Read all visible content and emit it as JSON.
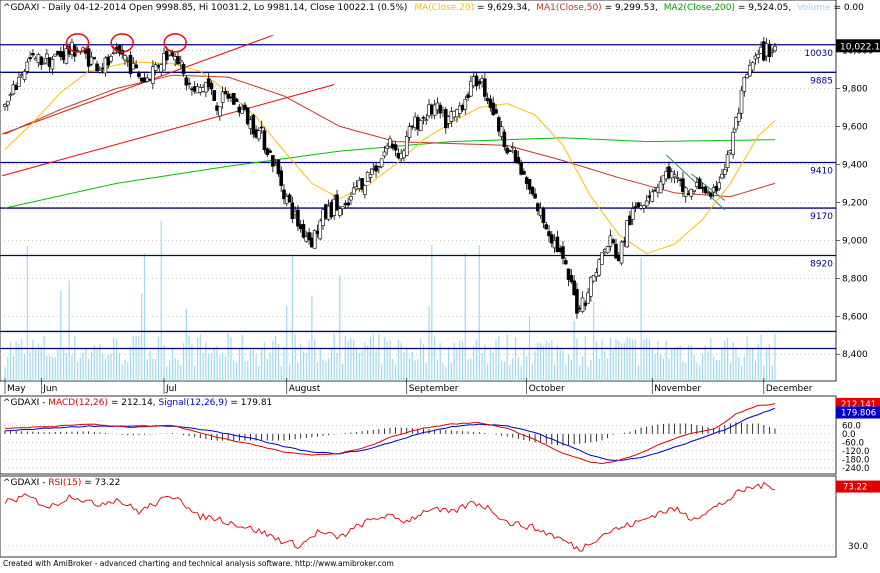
{
  "chart_data": [
    {
      "type": "candlestick",
      "panel": "price",
      "symbol": "^GDAXI",
      "header": {
        "prefix": "^GDAXI - Daily 04-12-2014 Open 9998.85, Hi 10031.2, Lo 9981.14, Close 10022.1 (0.5%)",
        "ma_label": "MA(Close,20)",
        "ma_value": " = 9,629.34,",
        "ma1_label": "MA1(Close,50)",
        "ma1_value": " = 9,299.53,",
        "ma2_label": "MA2(Close,200)",
        "ma2_value": " = 9,524.05,",
        "vol_label": "Volume",
        "vol_value": " = 0.00"
      },
      "last_price_label": "10,022.1",
      "ylim": [
        8280,
        10150
      ],
      "y_ticks": [
        8400,
        8600,
        8800,
        9000,
        9200,
        9400,
        9600,
        9800,
        10000
      ],
      "y_tick_labels": [
        "8,400",
        "8,600",
        "8,800",
        "9,000",
        "9,200",
        "9,400",
        "9,600",
        "9,800",
        "10,000"
      ],
      "x_month_labels": [
        {
          "label": "May",
          "index": 0
        },
        {
          "label": "Jun",
          "index": 13
        },
        {
          "label": "Jul",
          "index": 57
        },
        {
          "label": "August",
          "index": 101
        },
        {
          "label": "September",
          "index": 144
        },
        {
          "label": "October",
          "index": 187
        },
        {
          "label": "November",
          "index": 232
        },
        {
          "label": "December",
          "index": 272
        }
      ],
      "horizontal_lines": [
        {
          "value": 10030,
          "label": "10030",
          "color": "#00008b"
        },
        {
          "value": 9885,
          "label": "9885",
          "color": "#00008b"
        },
        {
          "value": 9410,
          "label": "9410",
          "color": "#00008b"
        },
        {
          "value": 9170,
          "label": "9170",
          "color": "#00008b"
        },
        {
          "value": 8920,
          "label": "8920",
          "color": "#00008b"
        },
        {
          "value": 8520,
          "label": "",
          "color": "#00008b"
        },
        {
          "value": 8430,
          "label": "",
          "color": "#00008b"
        }
      ],
      "trendlines": [
        {
          "x1": -1,
          "y1": 9560,
          "x2": 96,
          "y2": 10080,
          "color": "#ff0000"
        },
        {
          "x1": -1,
          "y1": 9340,
          "x2": 118,
          "y2": 9820,
          "color": "#ff0000"
        },
        {
          "x1": 237,
          "y1": 9450,
          "x2": 258,
          "y2": 9160,
          "color": "#2e8b57"
        },
        {
          "x1": 246,
          "y1": 9350,
          "x2": 258,
          "y2": 9210,
          "color": "#2e8b57"
        }
      ],
      "circles": [
        {
          "index": 26,
          "value": 10040,
          "color": "#ff0000"
        },
        {
          "index": 42,
          "value": 10040,
          "color": "#ff0000"
        },
        {
          "index": 61,
          "value": 10040,
          "color": "#ff0000"
        }
      ],
      "anchors": [
        {
          "i": 0,
          "v": 9700
        },
        {
          "i": 3,
          "v": 9780
        },
        {
          "i": 6,
          "v": 9890
        },
        {
          "i": 9,
          "v": 9945
        },
        {
          "i": 13,
          "v": 9950
        },
        {
          "i": 17,
          "v": 9955
        },
        {
          "i": 22,
          "v": 9990
        },
        {
          "i": 26,
          "v": 10010
        },
        {
          "i": 30,
          "v": 9960
        },
        {
          "i": 34,
          "v": 9920
        },
        {
          "i": 38,
          "v": 9935
        },
        {
          "i": 42,
          "v": 9985
        },
        {
          "i": 46,
          "v": 9900
        },
        {
          "i": 50,
          "v": 9840
        },
        {
          "i": 54,
          "v": 9920
        },
        {
          "i": 58,
          "v": 9985
        },
        {
          "i": 61,
          "v": 10010
        },
        {
          "i": 64,
          "v": 9860
        },
        {
          "i": 68,
          "v": 9770
        },
        {
          "i": 72,
          "v": 9830
        },
        {
          "i": 76,
          "v": 9720
        },
        {
          "i": 80,
          "v": 9760
        },
        {
          "i": 84,
          "v": 9700
        },
        {
          "i": 88,
          "v": 9620
        },
        {
          "i": 92,
          "v": 9550
        },
        {
          "i": 96,
          "v": 9420
        },
        {
          "i": 99,
          "v": 9300
        },
        {
          "i": 102,
          "v": 9180
        },
        {
          "i": 106,
          "v": 9060
        },
        {
          "i": 110,
          "v": 9000
        },
        {
          "i": 114,
          "v": 9120
        },
        {
          "i": 118,
          "v": 9180
        },
        {
          "i": 122,
          "v": 9150
        },
        {
          "i": 126,
          "v": 9280
        },
        {
          "i": 130,
          "v": 9340
        },
        {
          "i": 134,
          "v": 9410
        },
        {
          "i": 138,
          "v": 9520
        },
        {
          "i": 142,
          "v": 9450
        },
        {
          "i": 146,
          "v": 9600
        },
        {
          "i": 150,
          "v": 9650
        },
        {
          "i": 154,
          "v": 9700
        },
        {
          "i": 158,
          "v": 9620
        },
        {
          "i": 162,
          "v": 9680
        },
        {
          "i": 166,
          "v": 9780
        },
        {
          "i": 170,
          "v": 9860
        },
        {
          "i": 174,
          "v": 9720
        },
        {
          "i": 178,
          "v": 9560
        },
        {
          "i": 182,
          "v": 9450
        },
        {
          "i": 186,
          "v": 9320
        },
        {
          "i": 190,
          "v": 9200
        },
        {
          "i": 194,
          "v": 9080
        },
        {
          "i": 198,
          "v": 8960
        },
        {
          "i": 202,
          "v": 8800
        },
        {
          "i": 205,
          "v": 8650
        },
        {
          "i": 208,
          "v": 8700
        },
        {
          "i": 211,
          "v": 8820
        },
        {
          "i": 214,
          "v": 8920
        },
        {
          "i": 217,
          "v": 9000
        },
        {
          "i": 220,
          "v": 8900
        },
        {
          "i": 223,
          "v": 9080
        },
        {
          "i": 226,
          "v": 9160
        },
        {
          "i": 230,
          "v": 9240
        },
        {
          "i": 234,
          "v": 9300
        },
        {
          "i": 238,
          "v": 9360
        },
        {
          "i": 242,
          "v": 9280
        },
        {
          "i": 246,
          "v": 9250
        },
        {
          "i": 250,
          "v": 9300
        },
        {
          "i": 253,
          "v": 9190
        },
        {
          "i": 256,
          "v": 9330
        },
        {
          "i": 259,
          "v": 9420
        },
        {
          "i": 262,
          "v": 9620
        },
        {
          "i": 265,
          "v": 9820
        },
        {
          "i": 268,
          "v": 9930
        },
        {
          "i": 271,
          "v": 9980
        },
        {
          "i": 274,
          "v": 10000
        },
        {
          "i": 276,
          "v": 10022
        }
      ],
      "ma20": [
        {
          "i": 0,
          "v": 9480
        },
        {
          "i": 10,
          "v": 9620
        },
        {
          "i": 20,
          "v": 9780
        },
        {
          "i": 30,
          "v": 9890
        },
        {
          "i": 45,
          "v": 9940
        },
        {
          "i": 60,
          "v": 9930
        },
        {
          "i": 70,
          "v": 9890
        },
        {
          "i": 80,
          "v": 9780
        },
        {
          "i": 90,
          "v": 9650
        },
        {
          "i": 100,
          "v": 9470
        },
        {
          "i": 110,
          "v": 9300
        },
        {
          "i": 120,
          "v": 9220
        },
        {
          "i": 130,
          "v": 9290
        },
        {
          "i": 140,
          "v": 9400
        },
        {
          "i": 150,
          "v": 9530
        },
        {
          "i": 160,
          "v": 9620
        },
        {
          "i": 170,
          "v": 9700
        },
        {
          "i": 180,
          "v": 9720
        },
        {
          "i": 190,
          "v": 9660
        },
        {
          "i": 200,
          "v": 9500
        },
        {
          "i": 210,
          "v": 9230
        },
        {
          "i": 220,
          "v": 9030
        },
        {
          "i": 230,
          "v": 8930
        },
        {
          "i": 240,
          "v": 8980
        },
        {
          "i": 250,
          "v": 9110
        },
        {
          "i": 260,
          "v": 9300
        },
        {
          "i": 270,
          "v": 9550
        },
        {
          "i": 276,
          "v": 9630
        }
      ],
      "ma50": [
        {
          "i": 0,
          "v": 9560
        },
        {
          "i": 20,
          "v": 9690
        },
        {
          "i": 40,
          "v": 9800
        },
        {
          "i": 60,
          "v": 9870
        },
        {
          "i": 80,
          "v": 9860
        },
        {
          "i": 100,
          "v": 9760
        },
        {
          "i": 120,
          "v": 9600
        },
        {
          "i": 140,
          "v": 9520
        },
        {
          "i": 160,
          "v": 9510
        },
        {
          "i": 180,
          "v": 9500
        },
        {
          "i": 200,
          "v": 9420
        },
        {
          "i": 220,
          "v": 9330
        },
        {
          "i": 240,
          "v": 9250
        },
        {
          "i": 260,
          "v": 9230
        },
        {
          "i": 276,
          "v": 9300
        }
      ],
      "ma200": [
        {
          "i": 0,
          "v": 9170
        },
        {
          "i": 40,
          "v": 9300
        },
        {
          "i": 80,
          "v": 9390
        },
        {
          "i": 120,
          "v": 9470
        },
        {
          "i": 160,
          "v": 9520
        },
        {
          "i": 200,
          "v": 9540
        },
        {
          "i": 230,
          "v": 9520
        },
        {
          "i": 276,
          "v": 9530
        }
      ],
      "colors": {
        "up": "#ffffff",
        "down": "#000000",
        "ma20": "#ffc000",
        "ma50": "#c0392b",
        "ma200": "#00c000",
        "volume": "#a0d8ef",
        "last_label_bg": "#000000"
      }
    },
    {
      "type": "line",
      "panel": "macd",
      "header": {
        "prefix": "^GDAXI - ",
        "macd_label": "MACD(12,26)",
        "macd_value": " = 212.14, ",
        "signal_label": "Signal(12,26,9)",
        "signal_value": " = 179.81"
      },
      "ylim": [
        -270,
        240
      ],
      "y_ticks": [
        60,
        0,
        -60,
        -120,
        -180,
        -240
      ],
      "y_tick_labels": [
        "60.0",
        "0.0",
        "-60.0",
        "-120.0",
        "-180.0",
        "-240.0"
      ],
      "last_macd_label": "212.141",
      "last_signal_label": "179.806",
      "macd": [
        {
          "i": 0,
          "v": 40
        },
        {
          "i": 15,
          "v": 50
        },
        {
          "i": 30,
          "v": 70
        },
        {
          "i": 45,
          "v": 45
        },
        {
          "i": 60,
          "v": 60
        },
        {
          "i": 75,
          "v": -20
        },
        {
          "i": 90,
          "v": -80
        },
        {
          "i": 100,
          "v": -130
        },
        {
          "i": 110,
          "v": -150
        },
        {
          "i": 120,
          "v": -140
        },
        {
          "i": 130,
          "v": -90
        },
        {
          "i": 140,
          "v": -10
        },
        {
          "i": 150,
          "v": 40
        },
        {
          "i": 160,
          "v": 70
        },
        {
          "i": 170,
          "v": 80
        },
        {
          "i": 180,
          "v": 40
        },
        {
          "i": 190,
          "v": -40
        },
        {
          "i": 200,
          "v": -140
        },
        {
          "i": 210,
          "v": -200
        },
        {
          "i": 215,
          "v": -210
        },
        {
          "i": 225,
          "v": -160
        },
        {
          "i": 235,
          "v": -70
        },
        {
          "i": 245,
          "v": 0
        },
        {
          "i": 255,
          "v": 40
        },
        {
          "i": 262,
          "v": 140
        },
        {
          "i": 270,
          "v": 200
        },
        {
          "i": 276,
          "v": 212
        }
      ],
      "signal": [
        {
          "i": 0,
          "v": 20
        },
        {
          "i": 15,
          "v": 40
        },
        {
          "i": 30,
          "v": 55
        },
        {
          "i": 45,
          "v": 55
        },
        {
          "i": 60,
          "v": 55
        },
        {
          "i": 75,
          "v": 20
        },
        {
          "i": 90,
          "v": -40
        },
        {
          "i": 100,
          "v": -90
        },
        {
          "i": 110,
          "v": -130
        },
        {
          "i": 120,
          "v": -140
        },
        {
          "i": 130,
          "v": -110
        },
        {
          "i": 140,
          "v": -50
        },
        {
          "i": 150,
          "v": 10
        },
        {
          "i": 160,
          "v": 50
        },
        {
          "i": 170,
          "v": 70
        },
        {
          "i": 180,
          "v": 55
        },
        {
          "i": 190,
          "v": 10
        },
        {
          "i": 200,
          "v": -70
        },
        {
          "i": 210,
          "v": -150
        },
        {
          "i": 218,
          "v": -190
        },
        {
          "i": 228,
          "v": -170
        },
        {
          "i": 238,
          "v": -110
        },
        {
          "i": 248,
          "v": -40
        },
        {
          "i": 258,
          "v": 30
        },
        {
          "i": 266,
          "v": 110
        },
        {
          "i": 276,
          "v": 180
        }
      ],
      "colors": {
        "macd": "#e00000",
        "signal": "#0000cc",
        "hist": "#000000",
        "macd_label_bg": "#e00000",
        "signal_label_bg": "#0000cc"
      }
    },
    {
      "type": "line",
      "panel": "rsi",
      "header": {
        "prefix": "^GDAXI - ",
        "rsi_label": "RSI(15)",
        "rsi_value": " = 73.22"
      },
      "ylim": [
        24,
        78
      ],
      "y_ticks": [
        30
      ],
      "y_tick_labels": [
        "30.0"
      ],
      "last_label": "73.22",
      "rsi": [
        {
          "i": 0,
          "v": 62
        },
        {
          "i": 8,
          "v": 66
        },
        {
          "i": 16,
          "v": 58
        },
        {
          "i": 24,
          "v": 67
        },
        {
          "i": 32,
          "v": 60
        },
        {
          "i": 40,
          "v": 64
        },
        {
          "i": 48,
          "v": 55
        },
        {
          "i": 56,
          "v": 63
        },
        {
          "i": 62,
          "v": 67
        },
        {
          "i": 68,
          "v": 52
        },
        {
          "i": 76,
          "v": 50
        },
        {
          "i": 84,
          "v": 45
        },
        {
          "i": 92,
          "v": 40
        },
        {
          "i": 100,
          "v": 33
        },
        {
          "i": 106,
          "v": 30
        },
        {
          "i": 112,
          "v": 40
        },
        {
          "i": 120,
          "v": 36
        },
        {
          "i": 128,
          "v": 46
        },
        {
          "i": 136,
          "v": 52
        },
        {
          "i": 144,
          "v": 48
        },
        {
          "i": 152,
          "v": 57
        },
        {
          "i": 160,
          "v": 54
        },
        {
          "i": 168,
          "v": 62
        },
        {
          "i": 174,
          "v": 57
        },
        {
          "i": 180,
          "v": 47
        },
        {
          "i": 188,
          "v": 44
        },
        {
          "i": 196,
          "v": 38
        },
        {
          "i": 202,
          "v": 32
        },
        {
          "i": 206,
          "v": 27
        },
        {
          "i": 210,
          "v": 33
        },
        {
          "i": 216,
          "v": 40
        },
        {
          "i": 222,
          "v": 44
        },
        {
          "i": 228,
          "v": 48
        },
        {
          "i": 234,
          "v": 54
        },
        {
          "i": 240,
          "v": 57
        },
        {
          "i": 246,
          "v": 50
        },
        {
          "i": 252,
          "v": 55
        },
        {
          "i": 258,
          "v": 62
        },
        {
          "i": 264,
          "v": 70
        },
        {
          "i": 270,
          "v": 74
        },
        {
          "i": 276,
          "v": 73.2
        }
      ],
      "colors": {
        "rsi": "#e00000",
        "label_bg": "#e00000"
      }
    }
  ],
  "footer": "Created with AmiBroker - advanced charting and technical analysis software. http://www.amibroker.com"
}
